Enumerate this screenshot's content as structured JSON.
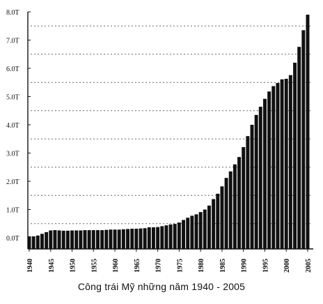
{
  "chart_data": {
    "type": "bar",
    "title": "",
    "caption": "Công trái Mỹ những năm 1940 - 2005",
    "xlabel": "",
    "ylabel": "",
    "unit": "T",
    "ylim": [
      0,
      8.0
    ],
    "yticks": [
      "0.0T",
      "1.0T",
      "2.0T",
      "3.0T",
      "4.0T",
      "5.0T",
      "6.0T",
      "7.0T",
      "8.0T"
    ],
    "xticks": [
      "1940",
      "1945",
      "1950",
      "1955",
      "1960",
      "1965",
      "1970",
      "1975",
      "1980",
      "1985",
      "1990",
      "1995",
      "2000",
      "2005"
    ],
    "grid": true,
    "bar_color": "#111111",
    "x": [
      1940,
      1941,
      1942,
      1943,
      1944,
      1945,
      1946,
      1947,
      1948,
      1949,
      1950,
      1951,
      1952,
      1953,
      1954,
      1955,
      1956,
      1957,
      1958,
      1959,
      1960,
      1961,
      1962,
      1963,
      1964,
      1965,
      1966,
      1967,
      1968,
      1969,
      1970,
      1971,
      1972,
      1973,
      1974,
      1975,
      1976,
      1977,
      1978,
      1979,
      1980,
      1981,
      1982,
      1983,
      1984,
      1985,
      1986,
      1987,
      1988,
      1989,
      1990,
      1991,
      1992,
      1993,
      1994,
      1995,
      1996,
      1997,
      1998,
      1999,
      2000,
      2001,
      2002,
      2003,
      2004,
      2005
    ],
    "values": [
      0.05,
      0.05,
      0.08,
      0.14,
      0.2,
      0.26,
      0.27,
      0.26,
      0.25,
      0.25,
      0.26,
      0.26,
      0.26,
      0.27,
      0.27,
      0.27,
      0.27,
      0.27,
      0.28,
      0.29,
      0.29,
      0.29,
      0.3,
      0.31,
      0.32,
      0.32,
      0.33,
      0.34,
      0.37,
      0.37,
      0.38,
      0.41,
      0.44,
      0.47,
      0.49,
      0.54,
      0.63,
      0.71,
      0.78,
      0.83,
      0.91,
      1.0,
      1.14,
      1.37,
      1.56,
      1.82,
      2.12,
      2.35,
      2.6,
      2.86,
      3.21,
      3.6,
      4.0,
      4.35,
      4.64,
      4.92,
      5.18,
      5.37,
      5.48,
      5.61,
      5.63,
      5.76,
      6.2,
      6.76,
      7.35,
      7.9
    ]
  }
}
